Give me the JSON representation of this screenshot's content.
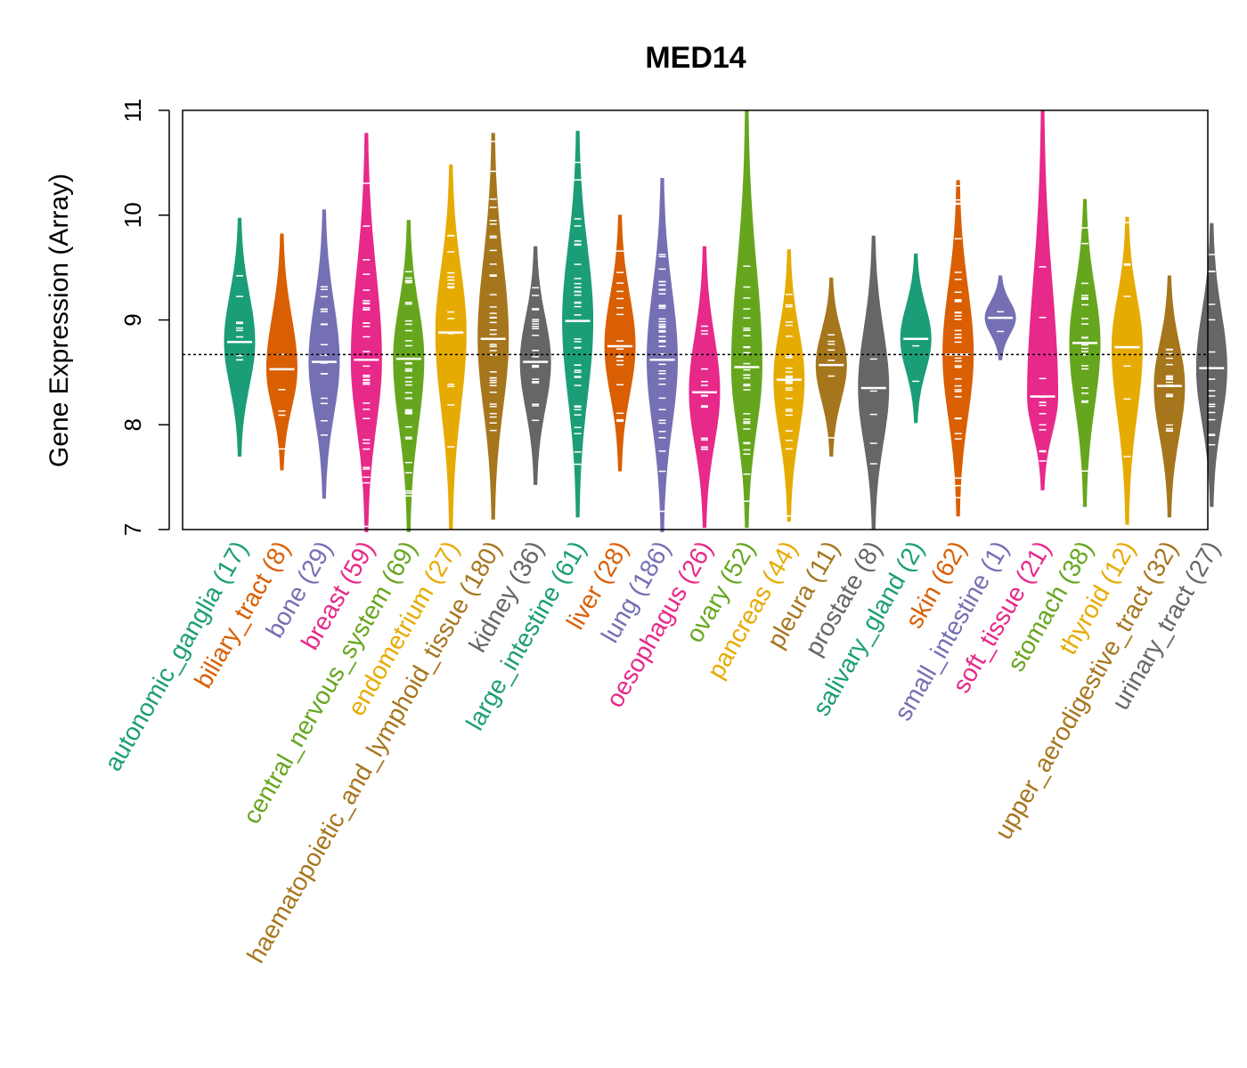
{
  "chart_data": {
    "type": "violin",
    "title": "MED14",
    "xlabel": "",
    "ylabel": "Gene Expression (Array)",
    "ylim": [
      7,
      11
    ],
    "yticks": [
      7,
      8,
      9,
      10,
      11
    ],
    "reference_line": 8.67,
    "grid": false,
    "categories": [
      {
        "name": "autonomic_ganglia",
        "count_label": "(17)",
        "color": "#1b9e77",
        "median": 8.79,
        "min": 7.7,
        "max": 9.97
      },
      {
        "name": "biliary_tract",
        "count_label": "(8)",
        "color": "#d95f02",
        "median": 8.53,
        "min": 7.57,
        "max": 9.82
      },
      {
        "name": "bone",
        "count_label": "(29)",
        "color": "#7570b3",
        "median": 8.6,
        "min": 7.3,
        "max": 10.05
      },
      {
        "name": "breast",
        "count_label": "(59)",
        "color": "#e7298a",
        "median": 8.62,
        "min": 6.98,
        "max": 10.78
      },
      {
        "name": "central_nervous_system",
        "count_label": "(69)",
        "color": "#66a61e",
        "median": 8.63,
        "min": 6.98,
        "max": 9.95
      },
      {
        "name": "endometrium",
        "count_label": "(27)",
        "color": "#e6ab02",
        "median": 8.88,
        "min": 7.0,
        "max": 10.48
      },
      {
        "name": "haematopoietic_and_lymphoid_tissue",
        "count_label": "(180)",
        "color": "#a6761d",
        "median": 8.82,
        "min": 7.1,
        "max": 10.78
      },
      {
        "name": "kidney",
        "count_label": "(36)",
        "color": "#666666",
        "median": 8.6,
        "min": 7.43,
        "max": 9.7
      },
      {
        "name": "large_intestine",
        "count_label": "(61)",
        "color": "#1b9e77",
        "median": 8.99,
        "min": 7.12,
        "max": 10.8
      },
      {
        "name": "liver",
        "count_label": "(28)",
        "color": "#d95f02",
        "median": 8.75,
        "min": 7.56,
        "max": 10.0
      },
      {
        "name": "lung",
        "count_label": "(186)",
        "color": "#7570b3",
        "median": 8.62,
        "min": 6.98,
        "max": 10.35
      },
      {
        "name": "oesophagus",
        "count_label": "(26)",
        "color": "#e7298a",
        "median": 8.31,
        "min": 7.02,
        "max": 9.7
      },
      {
        "name": "ovary",
        "count_label": "(52)",
        "color": "#66a61e",
        "median": 8.55,
        "min": 7.02,
        "max": 11.0
      },
      {
        "name": "pancreas",
        "count_label": "(44)",
        "color": "#e6ab02",
        "median": 8.43,
        "min": 7.08,
        "max": 9.67
      },
      {
        "name": "pleura",
        "count_label": "(11)",
        "color": "#a6761d",
        "median": 8.57,
        "min": 7.7,
        "max": 9.4
      },
      {
        "name": "prostate",
        "count_label": "(8)",
        "color": "#666666",
        "median": 8.35,
        "min": 7.0,
        "max": 9.8
      },
      {
        "name": "salivary_gland",
        "count_label": "(2)",
        "color": "#1b9e77",
        "median": 8.82,
        "min": 8.02,
        "max": 9.63
      },
      {
        "name": "skin",
        "count_label": "(62)",
        "color": "#d95f02",
        "median": 8.67,
        "min": 7.13,
        "max": 10.33
      },
      {
        "name": "small_intestine",
        "count_label": "(1)",
        "color": "#7570b3",
        "median": 9.02,
        "min": 8.62,
        "max": 9.42
      },
      {
        "name": "soft_tissue",
        "count_label": "(21)",
        "color": "#e7298a",
        "median": 8.27,
        "min": 7.38,
        "max": 11.0
      },
      {
        "name": "stomach",
        "count_label": "(38)",
        "color": "#66a61e",
        "median": 8.78,
        "min": 7.22,
        "max": 10.15
      },
      {
        "name": "thyroid",
        "count_label": "(12)",
        "color": "#e6ab02",
        "median": 8.74,
        "min": 7.05,
        "max": 9.98
      },
      {
        "name": "upper_aerodigestive_tract",
        "count_label": "(32)",
        "color": "#a6761d",
        "median": 8.37,
        "min": 7.12,
        "max": 9.42
      },
      {
        "name": "urinary_tract",
        "count_label": "(27)",
        "color": "#666666",
        "median": 8.54,
        "min": 7.22,
        "max": 9.92
      }
    ]
  }
}
